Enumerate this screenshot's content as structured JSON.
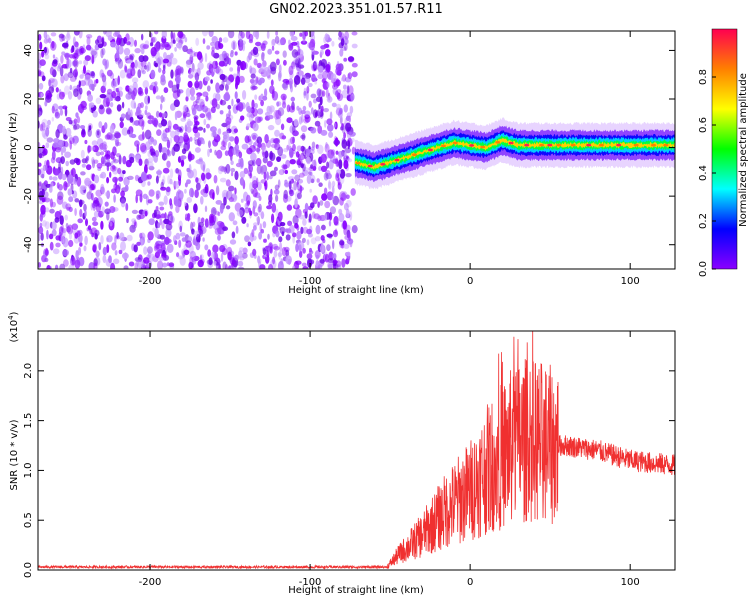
{
  "title": "GN02.2023.351.01.57.R11",
  "chart_data": [
    {
      "type": "heatmap",
      "xlabel": "Height of straight line (km)",
      "ylabel": "Frequency (Hz)",
      "xlim": [
        -270,
        128
      ],
      "ylim": [
        -50,
        48
      ],
      "xticks": [
        -200,
        -100,
        0,
        100
      ],
      "yticks": [
        -40,
        -20,
        0,
        20,
        40
      ],
      "noise_region": [
        -270,
        -72
      ],
      "signal_ridge": {
        "x": [
          -72,
          -60,
          -50,
          -40,
          -30,
          -20,
          -10,
          0,
          10,
          20,
          30,
          40,
          60,
          80,
          100,
          128
        ],
        "y": [
          -6,
          -8,
          -6,
          -4,
          -2,
          0,
          2,
          1,
          0,
          3,
          1,
          1,
          1,
          1,
          1,
          1
        ]
      },
      "colorbar": {
        "label": "Normalized spectral amplitude",
        "range": [
          0,
          1
        ],
        "ticks": [
          "0.0",
          "0.2",
          "0.4",
          "0.6",
          "0.8"
        ],
        "stops": [
          "#8a00ff",
          "#0000ff",
          "#00ffff",
          "#00ff00",
          "#ffff00",
          "#ff8000",
          "#ff0050"
        ]
      }
    },
    {
      "type": "line",
      "xlabel": "Height of straight line (km)",
      "ylabel": "SNR (10 * v/v)",
      "yscale_label": "(x10",
      "yscale_exp": "4",
      "yscale_close": ")",
      "xlim": [
        -270,
        128
      ],
      "ylim": [
        0,
        2.4
      ],
      "xticks": [
        -200,
        -100,
        0,
        100
      ],
      "yticks": [
        "0.0",
        "0.5",
        "1.0",
        "1.5",
        "2.0"
      ],
      "color": "#f03030",
      "envelope": {
        "x": [
          -270,
          -52,
          -45,
          -30,
          -15,
          0,
          10,
          20,
          30,
          40,
          50,
          60,
          80,
          100,
          128
        ],
        "y": [
          0.03,
          0.03,
          0.15,
          0.35,
          0.6,
          0.8,
          1.0,
          1.15,
          1.3,
          1.3,
          1.25,
          1.25,
          1.2,
          1.1,
          1.05
        ]
      }
    }
  ]
}
